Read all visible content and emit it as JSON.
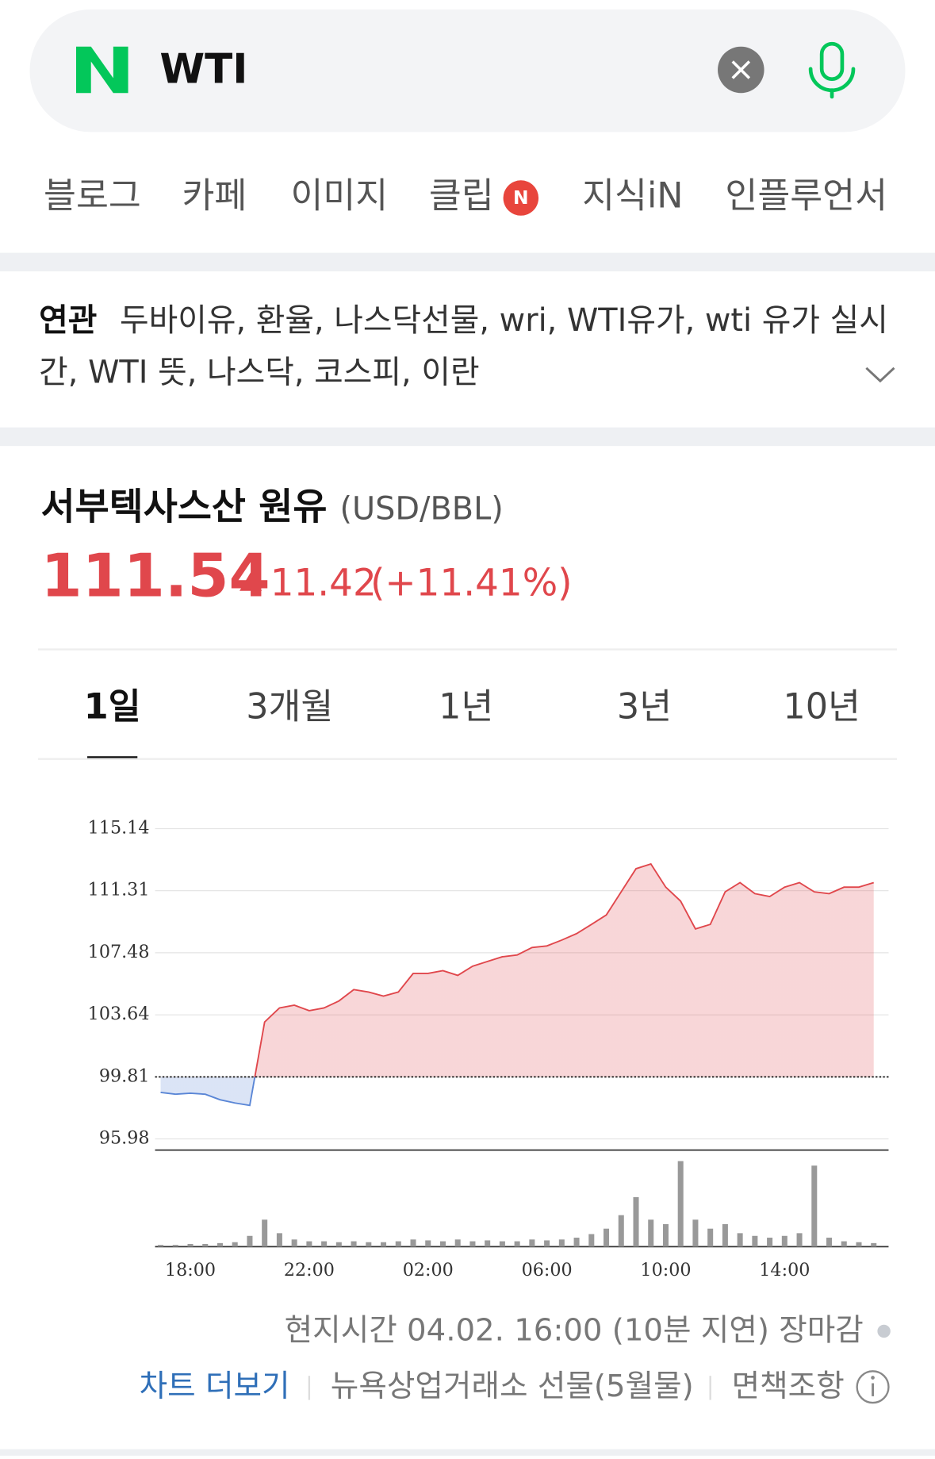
{
  "search": {
    "query": "WTI"
  },
  "tabs": {
    "items": [
      "블로그",
      "카페",
      "이미지",
      "클립",
      "지식iN",
      "인플루언서"
    ],
    "badge": "N"
  },
  "related": {
    "label": "연관",
    "lines": [
      "두바이유, 환율, 나스닥선물, wri, WTI유가, wti 유가 실시",
      "간, WTI 뜻, 나스닥, 코스피, 이란"
    ]
  },
  "quote": {
    "name": "서부텍사스산 원유",
    "unit": "(USD/BBL)",
    "price": "111.54",
    "change": "11.42",
    "change_pct": "(+11.41%)"
  },
  "periods": {
    "items": [
      "1일",
      "3개월",
      "1년",
      "3년",
      "10년"
    ],
    "selected": 0
  },
  "chart_data": {
    "type": "line",
    "categories": [
      null,
      null,
      "18:00",
      null,
      null,
      null,
      null,
      null,
      null,
      null,
      "22:00",
      null,
      null,
      null,
      null,
      null,
      null,
      null,
      "02:00",
      null,
      null,
      null,
      null,
      null,
      null,
      null,
      "06:00",
      null,
      null,
      null,
      null,
      null,
      null,
      null,
      "10:00",
      null,
      null,
      null,
      null,
      null,
      null,
      null,
      "14:00",
      null,
      null,
      null,
      null,
      null,
      null
    ],
    "values": [
      98.85,
      98.74,
      98.8,
      98.74,
      98.4,
      98.2,
      98.05,
      103.2,
      104.07,
      104.24,
      103.9,
      104.07,
      104.5,
      105.2,
      105.05,
      104.8,
      105.05,
      106.2,
      106.2,
      106.37,
      106.08,
      106.65,
      106.94,
      107.23,
      107.34,
      107.8,
      107.9,
      108.26,
      108.66,
      109.23,
      109.81,
      111.24,
      112.67,
      112.96,
      111.53,
      110.67,
      108.95,
      109.23,
      111.24,
      111.81,
      111.13,
      110.95,
      111.53,
      111.81,
      111.24,
      111.13,
      111.53,
      111.53,
      111.81
    ],
    "baseline": 99.81,
    "color_up": "#e0474c",
    "color_down": "#5a86d6",
    "ylim": [
      95.29,
      115.14
    ],
    "yticks": [
      95.98,
      99.81,
      103.64,
      107.48,
      111.31,
      115.14
    ],
    "grid": true,
    "volume": [
      2,
      2,
      3,
      3,
      4,
      5,
      12,
      30,
      15,
      8,
      6,
      6,
      5,
      6,
      5,
      5,
      6,
      8,
      7,
      6,
      8,
      6,
      7,
      6,
      6,
      8,
      7,
      8,
      10,
      14,
      20,
      35,
      55,
      30,
      25,
      95,
      30,
      20,
      25,
      15,
      12,
      10,
      12,
      15,
      90,
      10,
      6,
      5,
      4
    ],
    "vlim": [
      0,
      100
    ],
    "volume_color": "#999999"
  },
  "footer": {
    "time": "현지시간 04.02. 16:00 (10분 지연) 장마감",
    "more": "차트 더보기",
    "exchange": "뉴욕상업거래소 선물(5월물)",
    "disclaimer": "면책조항"
  }
}
